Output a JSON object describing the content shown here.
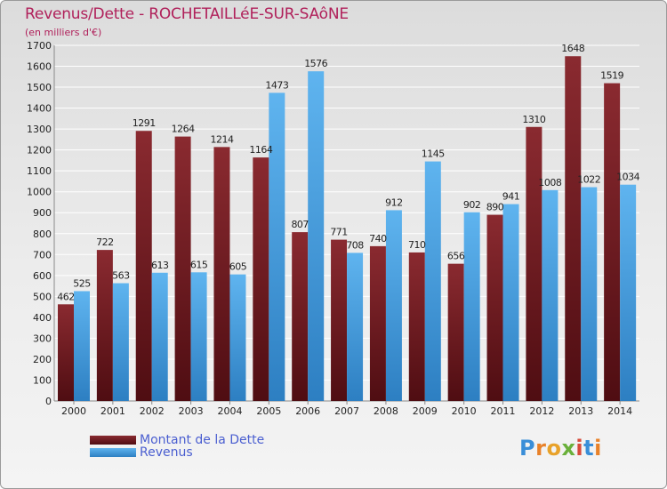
{
  "header": {
    "title": "Revenus/Dette - ROCHETAILLéE-SUR-SAôNE",
    "subtitle": "(en milliers d'€)"
  },
  "legend": {
    "items": [
      {
        "label": "Montant de la Dette",
        "color": "#7a1f24"
      },
      {
        "label": "Revenus",
        "color": "#4aa3e4"
      }
    ]
  },
  "logo": {
    "text": "Proxiti"
  },
  "chart_data": {
    "type": "bar",
    "title": "Revenus/Dette - ROCHETAILLéE-SUR-SAôNE",
    "subtitle": "(en milliers d'€)",
    "xlabel": "",
    "ylabel": "",
    "categories": [
      "2000",
      "2001",
      "2002",
      "2003",
      "2004",
      "2005",
      "2006",
      "2007",
      "2008",
      "2009",
      "2010",
      "2011",
      "2012",
      "2013",
      "2014"
    ],
    "series": [
      {
        "name": "Montant de la Dette",
        "color": "#7a1f24",
        "values": [
          462,
          722,
          1291,
          1264,
          1214,
          1164,
          807,
          771,
          740,
          710,
          656,
          890,
          1310,
          1648,
          1519
        ]
      },
      {
        "name": "Revenus",
        "color": "#4aa3e4",
        "values": [
          525,
          563,
          613,
          615,
          605,
          1473,
          1576,
          708,
          912,
          1145,
          902,
          941,
          1008,
          1022,
          1034
        ]
      }
    ],
    "ylim": [
      0,
      1700
    ],
    "yticks": [
      0,
      100,
      200,
      300,
      400,
      500,
      600,
      700,
      800,
      900,
      1000,
      1100,
      1200,
      1300,
      1400,
      1500,
      1600,
      1700
    ],
    "grid": true,
    "legend_position": "bottom-left"
  }
}
